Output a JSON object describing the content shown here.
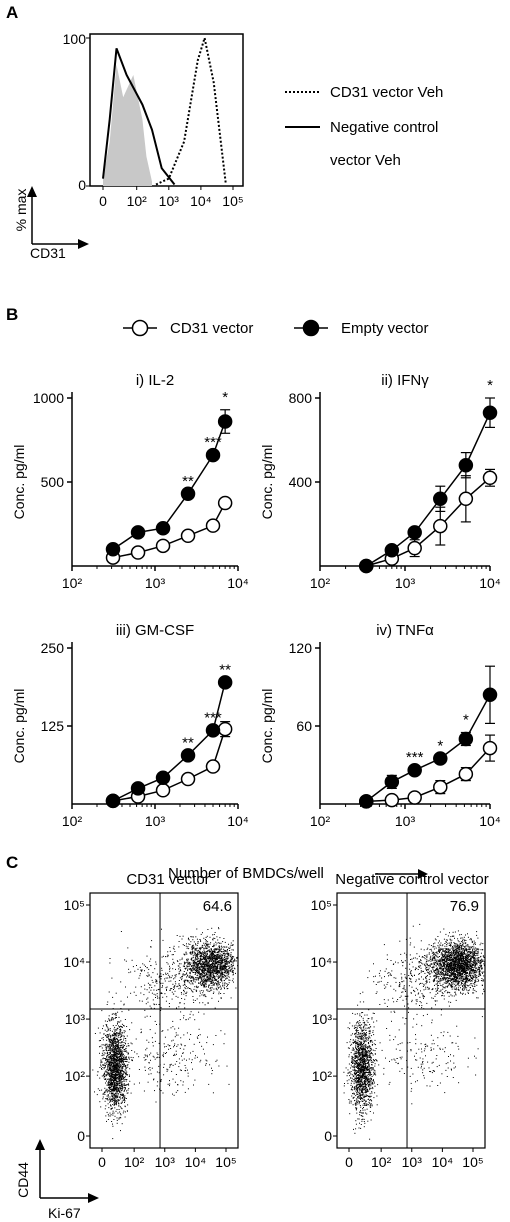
{
  "panel_letters": {
    "a": "A",
    "b": "B",
    "c": "C"
  },
  "colors": {
    "ink": "#000000",
    "gray_fill": "#c8c8c8",
    "open_fill": "#ffffff"
  },
  "chart_data": [
    {
      "id": "panelA-histogram",
      "type": "area",
      "ylabel": "% max",
      "xlabel": "CD31",
      "y_top_tick": "100",
      "y_bottom_tick": "0",
      "x_ticks": [
        "0",
        "10²",
        "10³",
        "10⁴",
        "10⁵"
      ],
      "x_tick_values": [
        0,
        100,
        1000,
        10000,
        100000
      ],
      "ylim": [
        0,
        100
      ],
      "scale": "logicle",
      "legend": {
        "placement": "right",
        "entries": [
          {
            "label": "CD31 vector Veh",
            "style": "dotted"
          },
          {
            "label": "Negative control",
            "style": "solid"
          },
          {
            "label": "vector Veh",
            "style": "continuation"
          }
        ]
      },
      "series": [
        {
          "style": "filled gray",
          "x": [
            0,
            20,
            40,
            60,
            90,
            150,
            200,
            300
          ],
          "values": [
            5,
            30,
            82,
            60,
            75,
            45,
            20,
            3
          ]
        },
        {
          "style": "solid",
          "x": [
            0,
            20,
            40,
            70,
            150,
            300,
            600,
            1500
          ],
          "values": [
            5,
            45,
            93,
            75,
            55,
            38,
            12,
            1
          ]
        },
        {
          "style": "dotted",
          "x": [
            400,
            1000,
            3000,
            8000,
            13000,
            25000,
            60000
          ],
          "values": [
            1,
            5,
            30,
            85,
            100,
            70,
            1
          ]
        }
      ]
    },
    {
      "id": "panelB-legend",
      "type": "line",
      "legend": [
        {
          "label": "CD31 vector",
          "marker": "open-circle"
        },
        {
          "label": "Empty vector",
          "marker": "filled-circle"
        }
      ],
      "shared_xlabel": "Number of BMDCs/well",
      "shared_x_ticks": [
        "10²",
        "10³",
        "10⁴"
      ]
    },
    {
      "id": "panelB-i",
      "type": "line",
      "title": "i) IL-2",
      "ylabel": "Conc. pg/ml",
      "ylim": [
        0,
        1000
      ],
      "y_ticks": [
        500,
        1000
      ],
      "xlog": true,
      "xlim": [
        100,
        10000
      ],
      "x": [
        312,
        625,
        1250,
        2500,
        5000,
        7000
      ],
      "series": [
        {
          "name": "CD31 vector",
          "values": [
            50,
            80,
            120,
            180,
            240,
            375
          ],
          "err": [
            0,
            0,
            0,
            0,
            0,
            0
          ]
        },
        {
          "name": "Empty vector",
          "values": [
            100,
            200,
            225,
            430,
            660,
            860
          ],
          "err": [
            0,
            0,
            0,
            0,
            0,
            70
          ]
        }
      ],
      "significance": [
        {
          "x": 2500,
          "text": "**"
        },
        {
          "x": 5000,
          "text": "***"
        },
        {
          "x": 7000,
          "text": "*"
        }
      ]
    },
    {
      "id": "panelB-ii",
      "type": "line",
      "title": "ii) IFNγ",
      "ylabel": "Conc. pg/ml",
      "ylim": [
        0,
        800
      ],
      "y_ticks": [
        400,
        800
      ],
      "xlog": true,
      "xlim": [
        100,
        10000
      ],
      "x": [
        350,
        700,
        1300,
        2600,
        5200,
        10000
      ],
      "series": [
        {
          "name": "CD31 vector",
          "values": [
            0,
            35,
            85,
            190,
            320,
            420
          ],
          "err": [
            0,
            0,
            40,
            90,
            110,
            40
          ]
        },
        {
          "name": "Empty vector",
          "values": [
            0,
            75,
            160,
            320,
            480,
            730
          ],
          "err": [
            0,
            0,
            0,
            60,
            60,
            70
          ]
        }
      ],
      "significance": [
        {
          "x": 10000,
          "text": "*"
        }
      ]
    },
    {
      "id": "panelB-iii",
      "type": "line",
      "title": "iii) GM-CSF",
      "ylabel": "Conc. pg/ml",
      "ylim": [
        0,
        250
      ],
      "y_ticks": [
        125,
        250
      ],
      "xlog": true,
      "xlim": [
        100,
        10000
      ],
      "x": [
        312,
        625,
        1250,
        2500,
        5000,
        7000
      ],
      "series": [
        {
          "name": "CD31 vector",
          "values": [
            5,
            12,
            22,
            40,
            60,
            120
          ],
          "err": [
            0,
            0,
            0,
            0,
            0,
            12
          ]
        },
        {
          "name": "Empty vector",
          "values": [
            5,
            25,
            42,
            78,
            118,
            195
          ],
          "err": [
            0,
            0,
            0,
            0,
            0,
            0
          ]
        }
      ],
      "significance": [
        {
          "x": 2500,
          "text": "**"
        },
        {
          "x": 5000,
          "text": "***"
        },
        {
          "x": 7000,
          "text": "**"
        }
      ]
    },
    {
      "id": "panelB-iv",
      "type": "line",
      "title": "iv) TNFα",
      "ylabel": "Conc. pg/ml",
      "ylim": [
        0,
        120
      ],
      "y_ticks": [
        60,
        120
      ],
      "xlog": true,
      "xlim": [
        100,
        10000
      ],
      "x": [
        350,
        700,
        1300,
        2600,
        5200,
        10000
      ],
      "series": [
        {
          "name": "CD31 vector",
          "values": [
            2,
            3,
            5,
            13,
            23,
            43
          ],
          "err": [
            0,
            0,
            0,
            5,
            5,
            10
          ]
        },
        {
          "name": "Empty vector",
          "values": [
            2,
            17,
            26,
            35,
            50,
            84
          ],
          "err": [
            0,
            5,
            0,
            0,
            5,
            22
          ]
        }
      ],
      "significance": [
        {
          "x": 1300,
          "text": "***"
        },
        {
          "x": 2600,
          "text": "*"
        },
        {
          "x": 5200,
          "text": "*"
        }
      ]
    },
    {
      "id": "panelC",
      "type": "scatter",
      "ylabel": "CD44",
      "xlabel": "Ki-67",
      "ticks": [
        "0",
        "10²",
        "10³",
        "10⁴",
        "10⁵"
      ],
      "tick_values": [
        0,
        100,
        1000,
        10000,
        100000
      ],
      "scale": "logicle",
      "gate": {
        "x": 700,
        "y": 1500
      },
      "plots": [
        {
          "title": "CD31 vector",
          "quadrant_percent": "64.6",
          "clusters": [
            {
              "cx": 40,
              "cy": 150,
              "count": 1700
            },
            {
              "cx": 30000,
              "cy": 9000,
              "count": 1600
            },
            {
              "cx": 1500,
              "cy": 5000,
              "count": 350
            },
            {
              "cx": 2000,
              "cy": 200,
              "count": 220
            }
          ]
        },
        {
          "title": "Negative control vector",
          "quadrant_percent": "76.9",
          "clusters": [
            {
              "cx": 40,
              "cy": 150,
              "count": 1400
            },
            {
              "cx": 30000,
              "cy": 9000,
              "count": 2100
            },
            {
              "cx": 1500,
              "cy": 5000,
              "count": 350
            },
            {
              "cx": 2000,
              "cy": 200,
              "count": 160
            }
          ]
        }
      ]
    }
  ]
}
